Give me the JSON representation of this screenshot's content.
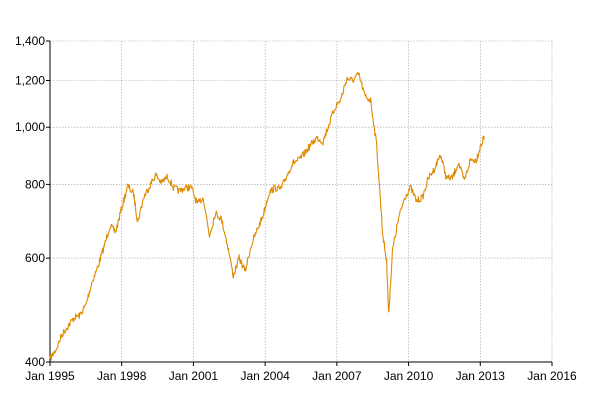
{
  "chart_data": {
    "type": "line",
    "title": "",
    "xlabel": "",
    "ylabel": "",
    "y_scale": "log",
    "ylim": [
      400,
      1400
    ],
    "xlim": [
      "1995-01",
      "2016-01"
    ],
    "grid": true,
    "y_ticks": [
      400,
      600,
      800,
      1000,
      1200,
      1400
    ],
    "y_tick_labels": [
      "400",
      "600",
      "800",
      "1,000",
      "1,200",
      "1,400"
    ],
    "x_ticks": [
      "1995-01",
      "1998-01",
      "2001-01",
      "2004-01",
      "2007-01",
      "2010-01",
      "2013-01",
      "2016-01"
    ],
    "x_tick_labels": [
      "Jan 1995",
      "Jan 1998",
      "Jan 2001",
      "Jan 2004",
      "Jan 2007",
      "Jan 2010",
      "Jan 2013",
      "Jan 2016"
    ],
    "series": [
      {
        "color": "#e08a00",
        "points": [
          [
            "1995-01",
            405
          ],
          [
            "1995-04",
            420
          ],
          [
            "1995-07",
            445
          ],
          [
            "1995-10",
            460
          ],
          [
            "1996-01",
            475
          ],
          [
            "1996-04",
            480
          ],
          [
            "1996-07",
            500
          ],
          [
            "1996-10",
            545
          ],
          [
            "1997-01",
            580
          ],
          [
            "1997-04",
            625
          ],
          [
            "1997-07",
            680
          ],
          [
            "1997-10",
            665
          ],
          [
            "1998-01",
            730
          ],
          [
            "1998-04",
            795
          ],
          [
            "1998-07",
            770
          ],
          [
            "1998-09",
            690
          ],
          [
            "1998-12",
            760
          ],
          [
            "1999-03",
            795
          ],
          [
            "1999-06",
            830
          ],
          [
            "1999-09",
            805
          ],
          [
            "1999-12",
            825
          ],
          [
            "2000-03",
            790
          ],
          [
            "2000-06",
            780
          ],
          [
            "2000-09",
            790
          ],
          [
            "2000-12",
            790
          ],
          [
            "2001-03",
            740
          ],
          [
            "2001-06",
            760
          ],
          [
            "2001-09",
            655
          ],
          [
            "2001-12",
            715
          ],
          [
            "2002-03",
            700
          ],
          [
            "2002-06",
            635
          ],
          [
            "2002-09",
            560
          ],
          [
            "2002-12",
            600
          ],
          [
            "2003-03",
            570
          ],
          [
            "2003-06",
            630
          ],
          [
            "2003-09",
            670
          ],
          [
            "2003-12",
            710
          ],
          [
            "2004-03",
            775
          ],
          [
            "2004-06",
            790
          ],
          [
            "2004-09",
            785
          ],
          [
            "2004-12",
            830
          ],
          [
            "2005-03",
            870
          ],
          [
            "2005-06",
            880
          ],
          [
            "2005-09",
            905
          ],
          [
            "2005-12",
            935
          ],
          [
            "2006-03",
            960
          ],
          [
            "2006-06",
            945
          ],
          [
            "2006-09",
            1010
          ],
          [
            "2006-12",
            1080
          ],
          [
            "2007-03",
            1115
          ],
          [
            "2007-06",
            1210
          ],
          [
            "2007-09",
            1200
          ],
          [
            "2007-12",
            1230
          ],
          [
            "2008-03",
            1130
          ],
          [
            "2008-06",
            1110
          ],
          [
            "2008-09",
            930
          ],
          [
            "2008-12",
            660
          ],
          [
            "2009-02",
            590
          ],
          [
            "2009-03",
            480
          ],
          [
            "2009-05",
            620
          ],
          [
            "2009-08",
            700
          ],
          [
            "2009-11",
            760
          ],
          [
            "2010-02",
            790
          ],
          [
            "2010-05",
            750
          ],
          [
            "2010-08",
            760
          ],
          [
            "2010-11",
            820
          ],
          [
            "2011-02",
            850
          ],
          [
            "2011-05",
            900
          ],
          [
            "2011-08",
            820
          ],
          [
            "2011-11",
            820
          ],
          [
            "2012-02",
            870
          ],
          [
            "2012-05",
            810
          ],
          [
            "2012-08",
            880
          ],
          [
            "2012-11",
            880
          ],
          [
            "2013-01",
            925
          ],
          [
            "2013-03",
            965
          ]
        ]
      }
    ]
  }
}
